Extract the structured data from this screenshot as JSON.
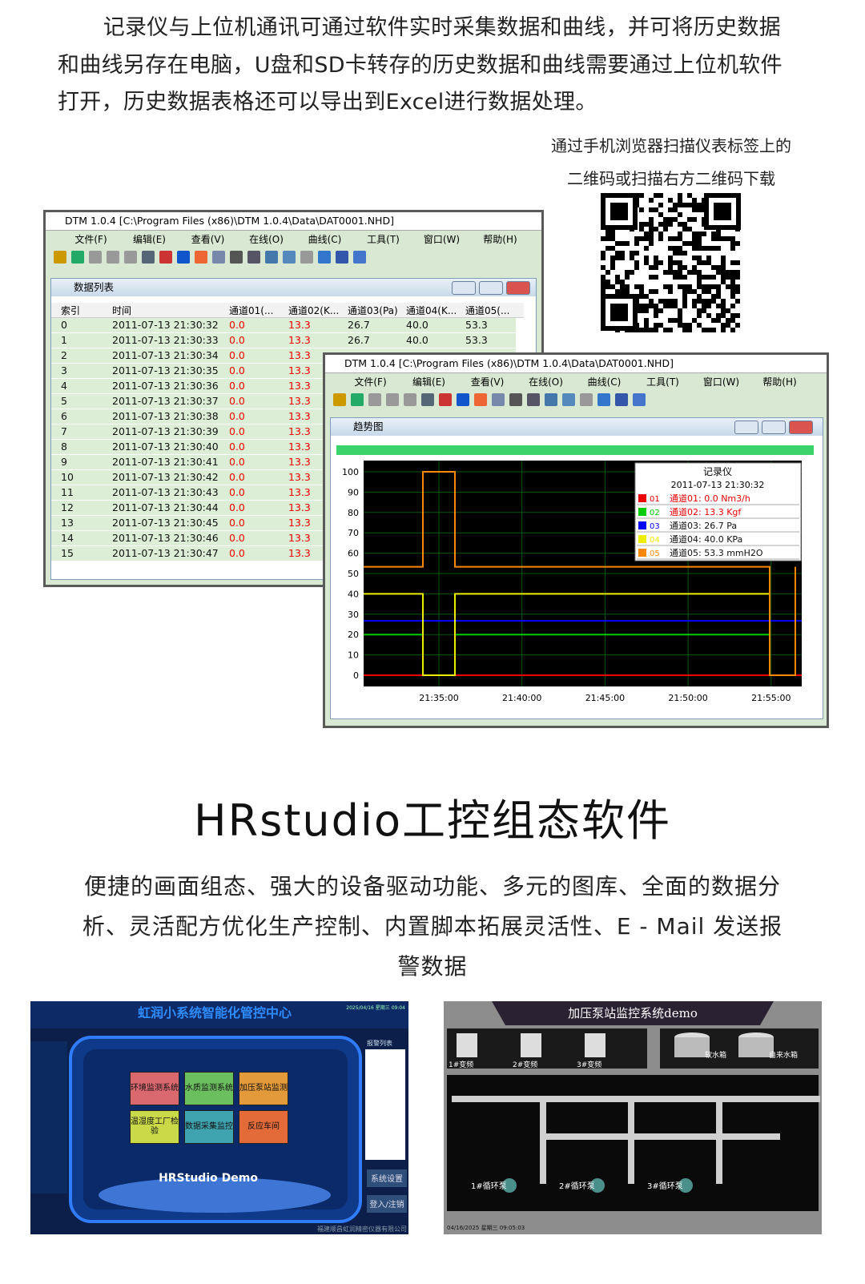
{
  "intro": {
    "paragraph": "记录仪与上位机通讯可通过软件实时采集数据和曲线，并可将历史数据和曲线另存在电脑，U盘和SD卡转存的历史数据和曲线需要通过上位机软件打开，历史数据表格还可以导出到Excel进行数据处理。",
    "qr_caption": [
      "通过手机浏览器扫描仪表标签上的",
      "二维码或扫描右方二维码下载"
    ]
  },
  "software": {
    "window_title": "DTM 1.0.4 [C:\\Program Files (x86)\\DTM 1.0.4\\Data\\DAT0001.NHD]",
    "menu": [
      "文件(F)",
      "编辑(E)",
      "查看(V)",
      "在线(O)",
      "曲线(C)",
      "工具(T)",
      "窗口(W)",
      "帮助(H)"
    ]
  },
  "data_list": {
    "panel_title": "数据列表",
    "columns": [
      "索引",
      "时间",
      "通道01(...",
      "通道02(K...",
      "通道03(Pa)",
      "通道04(K...",
      "通道05(..."
    ],
    "rows": [
      [
        "0",
        "2011-07-13 21:30:32",
        "0.0",
        "13.3",
        "26.7",
        "40.0",
        "53.3"
      ],
      [
        "1",
        "2011-07-13 21:30:33",
        "0.0",
        "13.3",
        "26.7",
        "40.0",
        "53.3"
      ],
      [
        "2",
        "2011-07-13 21:30:34",
        "0.0",
        "13.3"
      ],
      [
        "3",
        "2011-07-13 21:30:35",
        "0.0",
        "13.3"
      ],
      [
        "4",
        "2011-07-13 21:30:36",
        "0.0",
        "13.3"
      ],
      [
        "5",
        "2011-07-13 21:30:37",
        "0.0",
        "13.3"
      ],
      [
        "6",
        "2011-07-13 21:30:38",
        "0.0",
        "13.3"
      ],
      [
        "7",
        "2011-07-13 21:30:39",
        "0.0",
        "13.3"
      ],
      [
        "8",
        "2011-07-13 21:30:40",
        "0.0",
        "13.3"
      ],
      [
        "9",
        "2011-07-13 21:30:41",
        "0.0",
        "13.3"
      ],
      [
        "10",
        "2011-07-13 21:30:42",
        "0.0",
        "13.3"
      ],
      [
        "11",
        "2011-07-13 21:30:43",
        "0.0",
        "13.3"
      ],
      [
        "12",
        "2011-07-13 21:30:44",
        "0.0",
        "13.3"
      ],
      [
        "13",
        "2011-07-13 21:30:45",
        "0.0",
        "13.3"
      ],
      [
        "14",
        "2011-07-13 21:30:46",
        "0.0",
        "13.3"
      ],
      [
        "15",
        "2011-07-13 21:30:47",
        "0.0",
        "13.3"
      ]
    ]
  },
  "trend": {
    "panel_title": "趋势图",
    "yticks": [
      "100",
      "90",
      "80",
      "70",
      "60",
      "50",
      "40",
      "30",
      "20",
      "10",
      "0"
    ],
    "xticks": [
      "21:35:00",
      "21:40:00",
      "21:45:00",
      "21:50:00",
      "21:55:00"
    ],
    "legend": {
      "title": "记录仪",
      "time": "2011-07-13 21:30:32",
      "items": [
        {
          "id": "01",
          "text": "通道01: 0.0 Nm3/h"
        },
        {
          "id": "02",
          "text": "通道02: 13.3 Kgf"
        },
        {
          "id": "03",
          "text": "通道03: 26.7 Pa"
        },
        {
          "id": "04",
          "text": "通道04: 40.0 KPa"
        },
        {
          "id": "05",
          "text": "通道05: 53.3 mmH2O"
        }
      ]
    }
  },
  "hrstudio": {
    "title": "HRstudio工控组态软件",
    "description": "便捷的画面组态、强大的设备驱动功能、多元的图库、全面的数据分析、灵活配方优化生产控制、内置脚本拓展灵活性、E - Mail 发送报警数据"
  },
  "demo1": {
    "title": "虹润小系统智能化管控中心",
    "date": "2025/04/16 星期三 09:04",
    "alarm_title": "报警列表",
    "modules": [
      "环境监测系统",
      "水质监测系统",
      "加压泵站监测",
      "温湿度工厂检验",
      "数据采集监控",
      "反应车间"
    ],
    "logo": "HRStudio Demo",
    "buttons": [
      "系统设置",
      "登入/注销"
    ],
    "footer": "福建顺昌虹润精密仪器有限公司"
  },
  "demo2": {
    "title": "加压泵站监控系统demo",
    "pumps": [
      "1#变频",
      "2#变频",
      "3#变频"
    ],
    "tanks": [
      "软水箱",
      "自来水箱"
    ],
    "circulation": [
      "1#循环泵",
      "2#循环泵",
      "3#循环泵"
    ],
    "date": "04/16/2025 星期三 09:05:03"
  }
}
